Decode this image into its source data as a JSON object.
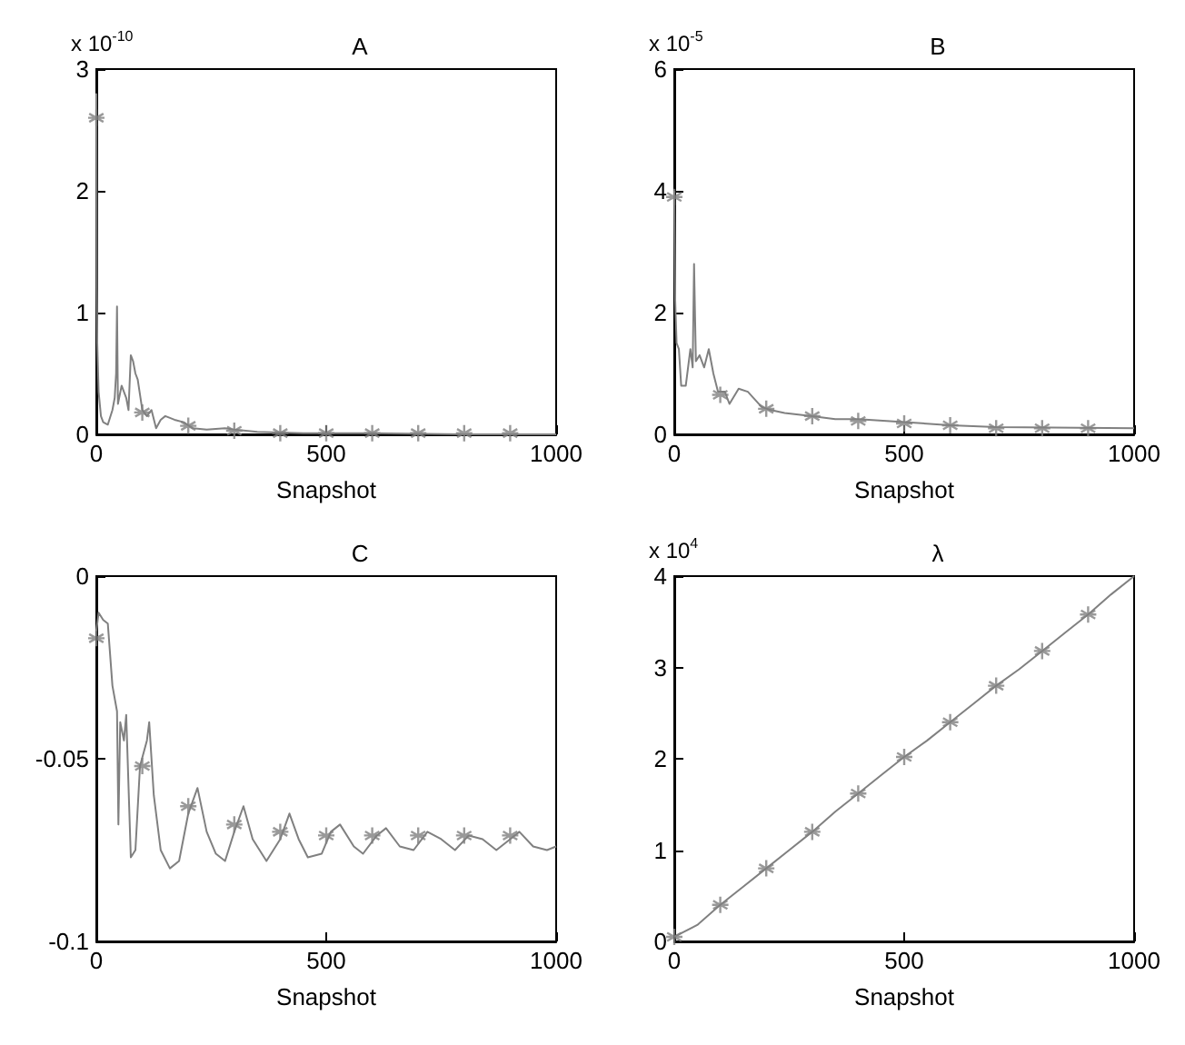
{
  "chart_data": [
    {
      "type": "line",
      "title": "A",
      "xlabel": "Snapshot",
      "ylabel": "x 10$^{-10}$",
      "xlim": [
        0,
        1000
      ],
      "xticks": [
        0,
        500,
        1000
      ],
      "ylim": [
        0,
        3
      ],
      "yticks": [
        0,
        1,
        2,
        3
      ],
      "series": [
        {
          "color": "#808080",
          "x": [
            0,
            1,
            2,
            5,
            10,
            15,
            25,
            35,
            40,
            43,
            45,
            47,
            55,
            65,
            70,
            75,
            80,
            85,
            90,
            100,
            110,
            120,
            130,
            140,
            150,
            170,
            190,
            210,
            240,
            280,
            300,
            350,
            450,
            600,
            800,
            1000
          ],
          "values": [
            2.8,
            1.2,
            0.75,
            0.35,
            0.15,
            0.1,
            0.08,
            0.2,
            0.3,
            0.5,
            1.05,
            0.25,
            0.4,
            0.3,
            0.2,
            0.65,
            0.6,
            0.5,
            0.45,
            0.2,
            0.15,
            0.2,
            0.05,
            0.12,
            0.15,
            0.12,
            0.1,
            0.05,
            0.04,
            0.05,
            0.04,
            0.02,
            0.01,
            0.01,
            0,
            0
          ]
        },
        {
          "type": "scatter",
          "color": "#808080",
          "marker": "cross",
          "x": [
            0,
            100,
            200,
            300,
            400,
            500,
            600,
            700,
            800,
            900
          ],
          "values": [
            2.6,
            0.18,
            0.07,
            0.03,
            0.01,
            0.01,
            0.01,
            0.01,
            0.01,
            0.01
          ]
        }
      ]
    },
    {
      "type": "line",
      "title": "B",
      "xlabel": "Snapshot",
      "ylabel": "x 10$^{-5}$",
      "xlim": [
        0,
        1000
      ],
      "xticks": [
        0,
        500,
        1000
      ],
      "ylim": [
        0,
        6
      ],
      "yticks": [
        0,
        2,
        4,
        6
      ],
      "series": [
        {
          "color": "#808080",
          "x": [
            0,
            2,
            5,
            10,
            15,
            25,
            35,
            40,
            43,
            47,
            55,
            65,
            75,
            85,
            95,
            110,
            120,
            140,
            160,
            190,
            210,
            240,
            300,
            350,
            400,
            500,
            600,
            700,
            1000
          ],
          "values": [
            4,
            2.2,
            1.5,
            1.4,
            0.8,
            0.8,
            1.4,
            1.1,
            2.8,
            1.2,
            1.3,
            1.1,
            1.4,
            1.0,
            0.7,
            0.7,
            0.5,
            0.75,
            0.7,
            0.45,
            0.4,
            0.35,
            0.3,
            0.25,
            0.25,
            0.2,
            0.15,
            0.12,
            0.1
          ]
        },
        {
          "type": "scatter",
          "color": "#808080",
          "marker": "cross",
          "x": [
            0,
            100,
            200,
            300,
            400,
            500,
            600,
            700,
            800,
            900
          ],
          "values": [
            3.9,
            0.65,
            0.42,
            0.3,
            0.22,
            0.18,
            0.15,
            0.1,
            0.1,
            0.1
          ]
        }
      ]
    },
    {
      "type": "line",
      "title": "C",
      "xlabel": "Snapshot",
      "xlim": [
        0,
        1000
      ],
      "xticks": [
        0,
        500,
        1000
      ],
      "ylim": [
        -0.1,
        0
      ],
      "yticks": [
        -0.1,
        -0.05,
        0
      ],
      "series": [
        {
          "color": "#808080",
          "x": [
            0,
            5,
            15,
            25,
            35,
            45,
            48,
            52,
            60,
            65,
            75,
            85,
            95,
            110,
            115,
            125,
            140,
            160,
            180,
            200,
            220,
            240,
            260,
            280,
            300,
            320,
            340,
            370,
            400,
            420,
            440,
            460,
            490,
            510,
            530,
            560,
            580,
            610,
            630,
            660,
            690,
            720,
            750,
            780,
            810,
            840,
            870,
            900,
            920,
            950,
            980,
            1000
          ],
          "values": [
            -0.015,
            -0.01,
            -0.012,
            -0.013,
            -0.03,
            -0.037,
            -0.068,
            -0.04,
            -0.045,
            -0.038,
            -0.077,
            -0.075,
            -0.052,
            -0.045,
            -0.04,
            -0.06,
            -0.075,
            -0.08,
            -0.078,
            -0.065,
            -0.058,
            -0.07,
            -0.076,
            -0.078,
            -0.07,
            -0.063,
            -0.072,
            -0.078,
            -0.072,
            -0.065,
            -0.072,
            -0.077,
            -0.076,
            -0.07,
            -0.068,
            -0.074,
            -0.076,
            -0.071,
            -0.069,
            -0.074,
            -0.075,
            -0.07,
            -0.072,
            -0.075,
            -0.071,
            -0.072,
            -0.075,
            -0.072,
            -0.07,
            -0.074,
            -0.075,
            -0.074
          ]
        },
        {
          "type": "scatter",
          "color": "#808080",
          "marker": "cross",
          "x": [
            0,
            100,
            200,
            300,
            400,
            500,
            600,
            700,
            800,
            900
          ],
          "values": [
            -0.017,
            -0.052,
            -0.063,
            -0.068,
            -0.07,
            -0.071,
            -0.071,
            -0.071,
            -0.071,
            -0.071
          ]
        }
      ]
    },
    {
      "type": "line",
      "title": "λ",
      "xlabel": "Snapshot",
      "ylabel": "x 10$^{4}$",
      "xlim": [
        0,
        1000
      ],
      "xticks": [
        0,
        500,
        1000
      ],
      "ylim": [
        0,
        4
      ],
      "yticks": [
        0,
        1,
        2,
        3,
        4
      ],
      "series": [
        {
          "color": "#808080",
          "x": [
            0,
            50,
            100,
            150,
            200,
            250,
            300,
            350,
            400,
            450,
            500,
            550,
            600,
            650,
            700,
            750,
            800,
            850,
            900,
            950,
            1000
          ],
          "values": [
            0.05,
            0.18,
            0.4,
            0.6,
            0.8,
            1.0,
            1.2,
            1.42,
            1.62,
            1.82,
            2.02,
            2.2,
            2.4,
            2.6,
            2.8,
            2.98,
            3.18,
            3.38,
            3.58,
            3.8,
            4.0
          ]
        },
        {
          "type": "scatter",
          "color": "#808080",
          "marker": "cross",
          "x": [
            0,
            100,
            200,
            300,
            400,
            500,
            600,
            700,
            800,
            900
          ],
          "values": [
            0.05,
            0.4,
            0.8,
            1.2,
            1.62,
            2.02,
            2.4,
            2.8,
            3.18,
            3.58
          ]
        }
      ]
    }
  ]
}
